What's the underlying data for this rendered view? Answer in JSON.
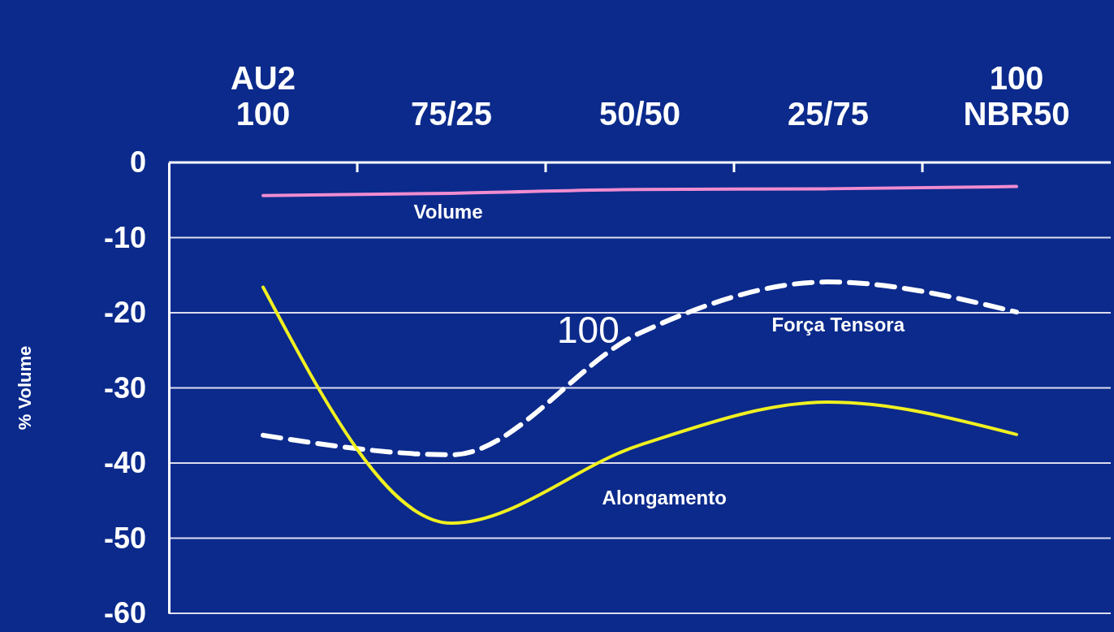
{
  "chart_data": {
    "type": "line",
    "ylabel": "% Volume",
    "categories": [
      "AU2\n100",
      "75/25",
      "50/50",
      "25/75",
      "100\nNBR50"
    ],
    "series": [
      {
        "name": "Volume",
        "color": "#f08cd0",
        "values": [
          -4.4,
          -4.1,
          -3.6,
          -3.5,
          -3.2
        ]
      },
      {
        "name": "Força Tensora",
        "color": "#ffffff",
        "line_style": "dashed",
        "values": [
          -36.3,
          -38.9,
          -22.7,
          -15.9,
          -19.9
        ]
      },
      {
        "name": "Alongamento",
        "color": "#f0f020",
        "values": [
          -16.6,
          -48,
          -37.6,
          -31.9,
          -36.2
        ]
      }
    ],
    "ylim": [
      -60,
      0
    ],
    "yticks": [
      0,
      -10,
      -20,
      -30,
      -40,
      -50,
      -60
    ],
    "grid": "y",
    "marker": "none",
    "line_style": "solid",
    "legend": false,
    "annotations": [
      "100"
    ]
  }
}
